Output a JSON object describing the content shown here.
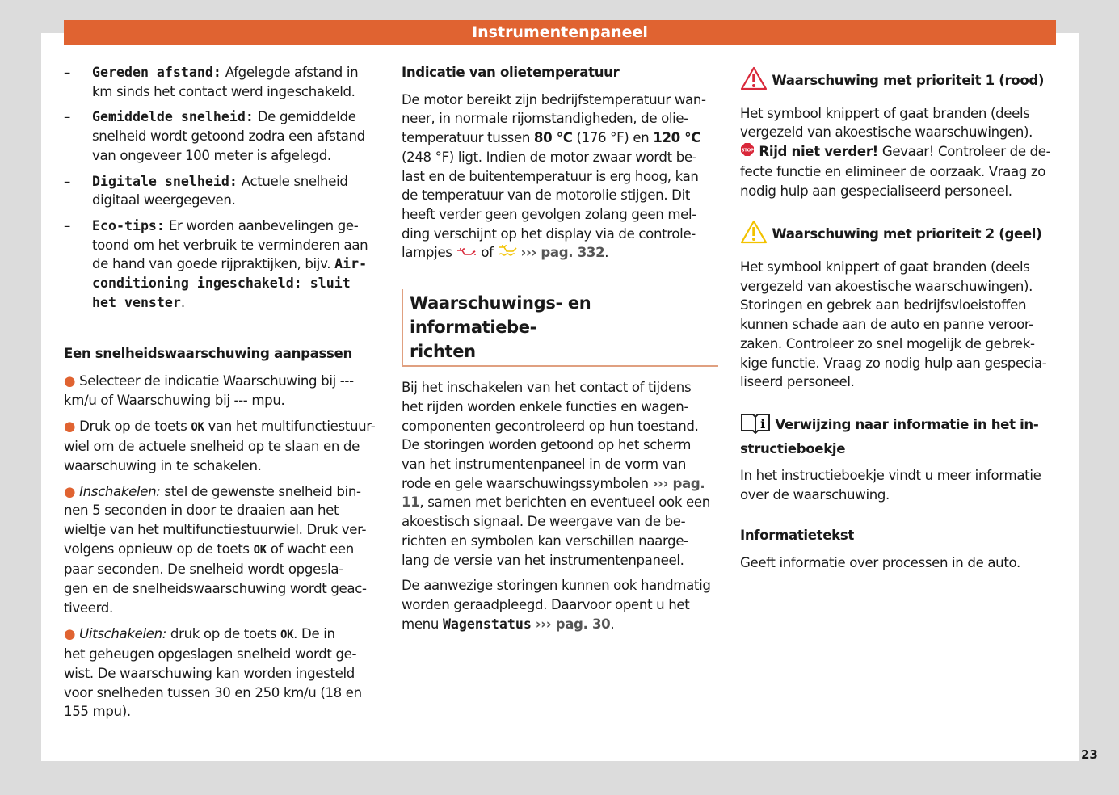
{
  "header": {
    "title": "Instrumentenpaneel"
  },
  "page_number": "23",
  "colors": {
    "accent": "#e06331",
    "warning_red": "#d9283a",
    "warning_yellow": "#f2c200"
  },
  "columns": [
    [
      {
        "type": "dash",
        "runs": [
          {
            "s": "m",
            "t": "Gereden afstand:"
          },
          {
            "s": "n",
            "t": " Afgelegde afstand in\nkm sinds het contact werd ingeschakeld."
          }
        ]
      },
      {
        "type": "dash",
        "runs": [
          {
            "s": "m",
            "t": "Gemiddelde snelheid:"
          },
          {
            "s": "n",
            "t": " De gemiddelde\nsnelheid wordt getoond zodra een afstand\nvan ongeveer 100 meter is afgelegd."
          }
        ]
      },
      {
        "type": "dash",
        "runs": [
          {
            "s": "m",
            "t": "Digitale snelheid:"
          },
          {
            "s": "n",
            "t": " Actuele snelheid\ndigitaal weergegeven."
          }
        ]
      },
      {
        "type": "dash",
        "runs": [
          {
            "s": "m",
            "t": "Eco-tips:"
          },
          {
            "s": "n",
            "t": " Er worden aanbevelingen ge-\ntoond om het verbruik te verminderen aan\nde hand van goede rijpraktijken, bijv. "
          },
          {
            "s": "m",
            "t": "Air-\nconditioning ingeschakeld: sluit\nhet venster"
          },
          {
            "s": "n",
            "t": "."
          }
        ]
      },
      {
        "type": "heading",
        "style": "margin-top:40px",
        "runs": [
          {
            "s": "n",
            "t": "Een snelheidswaarschuwing aanpassen"
          }
        ]
      },
      {
        "type": "para",
        "runs": [
          {
            "s": "dot",
            "t": "● "
          },
          {
            "s": "n",
            "t": "Selecteer de indicatie Waarschuwing bij ---\n km/u of Waarschuwing bij --- mpu."
          }
        ]
      },
      {
        "type": "para",
        "runs": [
          {
            "s": "dot",
            "t": "● "
          },
          {
            "s": "n",
            "t": "Druk op de toets "
          },
          {
            "s": "ok",
            "t": "OK"
          },
          {
            "s": "n",
            "t": " van het multifunctiestuur-\nwiel om de actuele snelheid op te slaan en de\nwaarschuwing in te schakelen."
          }
        ]
      },
      {
        "type": "para",
        "runs": [
          {
            "s": "dot",
            "t": "● "
          },
          {
            "s": "i",
            "t": "Inschakelen:"
          },
          {
            "s": "n",
            "t": " stel de gewenste snelheid bin-\nnen 5 seconden in door te draaien aan het\nwieltje van het multifunctiestuurwiel. Druk ver-\nvolgens opnieuw op de toets "
          },
          {
            "s": "ok",
            "t": "OK"
          },
          {
            "s": "n",
            "t": " of wacht een\npaar seconden. De snelheid wordt opgesla-\ngen en de snelheidswaarschuwing wordt geac-\ntiveerd."
          }
        ]
      },
      {
        "type": "para",
        "runs": [
          {
            "s": "dot",
            "t": "● "
          },
          {
            "s": "i",
            "t": "Uitschakelen:"
          },
          {
            "s": "n",
            "t": " druk op de toets "
          },
          {
            "s": "ok",
            "t": "OK"
          },
          {
            "s": "n",
            "t": ". De in\nhet geheugen opgeslagen snelheid wordt ge-\nwist. De waarschuwing kan worden ingesteld\nvoor snelheden tussen 30 en 250 km/u (18 en\n155 mpu)."
          }
        ]
      }
    ],
    [
      {
        "type": "heading",
        "runs": [
          {
            "s": "n",
            "t": "Indicatie van olietemperatuur"
          }
        ]
      },
      {
        "type": "para",
        "runs": [
          {
            "s": "n",
            "t": "De motor bereikt zijn bedrijfstemperatuur wan-\nneer, in normale rijomstandigheden, de olie-\ntemperatuur tussen "
          },
          {
            "s": "b",
            "t": "80 °C"
          },
          {
            "s": "n",
            "t": " (176 °F) en "
          },
          {
            "s": "b",
            "t": "120 °C"
          },
          {
            "s": "n",
            "t": "\n(248 °F) ligt. Indien de motor zwaar wordt be-\nlast en de buitentemperatuur is erg hoog, kan\nde temperatuur van de motorolie stijgen. Dit\nheeft verder geen gevolgen zolang geen mel-\nding verschijnt op het display via de controle-\nlampjes "
          },
          {
            "s": "icon",
            "t": "oil-red"
          },
          {
            "s": "n",
            "t": " of "
          },
          {
            "s": "icon",
            "t": "oil-yellow"
          },
          {
            "s": "n",
            "t": " "
          },
          {
            "s": "g",
            "t": "››› pag. 332"
          },
          {
            "s": "n",
            "t": "."
          }
        ]
      },
      {
        "type": "section",
        "runs": [
          {
            "s": "n",
            "t": "Waarschuwings- en informatiebe-\nrichten"
          }
        ]
      },
      {
        "type": "para",
        "runs": [
          {
            "s": "n",
            "t": "Bij het inschakelen van het contact of tijdens\nhet rijden worden enkele functies en wagen-\ncomponenten gecontroleerd op hun toestand.\nDe storingen worden getoond op het scherm\nvan het instrumentenpaneel in de vorm van\nrode en gele waarschuwingssymbolen "
          },
          {
            "s": "g",
            "t": "››› pag.\n11"
          },
          {
            "s": "n",
            "t": ", samen met berichten en eventueel ook een\nakoestisch signaal. De weergave van de be-\nrichten en symbolen kan verschillen naarge-\nlang de versie van het instrumentenpaneel."
          }
        ]
      },
      {
        "type": "para",
        "runs": [
          {
            "s": "n",
            "t": "De aanwezige storingen kunnen ook handmatig\nworden geraadpleegd. Daarvoor opent u het\nmenu "
          },
          {
            "s": "m",
            "t": "Wagenstatus"
          },
          {
            "s": "n",
            "t": " "
          },
          {
            "s": "g",
            "t": "››› pag. 30"
          },
          {
            "s": "n",
            "t": "."
          }
        ]
      }
    ],
    [
      {
        "type": "heading",
        "style": "margin-top:4px",
        "runs": [
          {
            "s": "icon",
            "t": "warning-red"
          },
          {
            "s": "n",
            "t": " Waarschuwing met prioriteit 1 (rood)"
          }
        ]
      },
      {
        "type": "para",
        "runs": [
          {
            "s": "n",
            "t": "Het symbool knippert of gaat branden (deels\nvergezeld van akoestische waarschuwingen).\n"
          },
          {
            "s": "icon",
            "t": "stop"
          },
          {
            "s": "b",
            "t": " Rijd niet verder!"
          },
          {
            "s": "n",
            "t": " Gevaar! Controleer de de-\nfecte functie en elimineer de oorzaak. Vraag zo\nnodig hulp aan gespecialiseerd personeel."
          }
        ]
      },
      {
        "type": "heading",
        "style": "margin-top:24px",
        "runs": [
          {
            "s": "icon",
            "t": "warning-yellow"
          },
          {
            "s": "n",
            "t": " Waarschuwing met prioriteit 2 (geel)"
          }
        ]
      },
      {
        "type": "para",
        "runs": [
          {
            "s": "n",
            "t": "Het symbool knippert of gaat branden (deels\nvergezeld van akoestische waarschuwingen).\nStoringen en gebrek aan bedrijfsvloeistoffen\nkunnen schade aan de auto en panne veroor-\nzaken. Controleer zo snel mogelijk de gebrek-\nkige functie. Vraag zo nodig hulp aan gespecia-\nliseerd personeel."
          }
        ]
      },
      {
        "type": "heading",
        "style": "margin-top:24px",
        "runs": [
          {
            "s": "icon",
            "t": "book-info"
          },
          {
            "s": "n",
            "t": " Verwijzing naar informatie in het in-\nstructieboekje"
          }
        ]
      },
      {
        "type": "para",
        "runs": [
          {
            "s": "n",
            "t": "In het instructieboekje vindt u meer informatie\nover de waarschuwing."
          }
        ]
      },
      {
        "type": "heading",
        "style": "margin-top:26px",
        "runs": [
          {
            "s": "n",
            "t": "Informatietekst"
          }
        ]
      },
      {
        "type": "para",
        "runs": [
          {
            "s": "n",
            "t": "Geeft informatie over processen in de auto."
          }
        ]
      }
    ]
  ]
}
